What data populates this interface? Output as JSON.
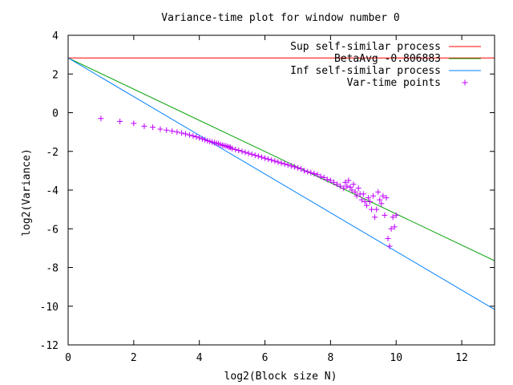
{
  "chart_data": {
    "type": "line",
    "title": "Variance-time plot for window number 0",
    "xlabel": "log2(Block size N)",
    "ylabel": "log2(Variance)",
    "xlim": [
      0,
      13
    ],
    "ylim": [
      -12,
      4
    ],
    "x_ticks": [
      0,
      2,
      4,
      6,
      8,
      10,
      12
    ],
    "y_ticks": [
      4,
      2,
      0,
      -2,
      -4,
      -6,
      -8,
      -10,
      -12
    ],
    "grid": false,
    "legend_position": "top-right",
    "series": [
      {
        "name": "Sup self-similar process",
        "kind": "line",
        "color": "#ff0000",
        "x": [
          0,
          13
        ],
        "y": [
          2.83,
          2.83
        ]
      },
      {
        "name": "BetaAvg -0.806883",
        "kind": "line",
        "color": "#00a000",
        "x": [
          0,
          13
        ],
        "y": [
          2.83,
          -7.65
        ]
      },
      {
        "name": "Inf self-similar process",
        "kind": "line",
        "color": "#0080ff",
        "x": [
          0,
          13
        ],
        "y": [
          2.83,
          -10.17
        ]
      },
      {
        "name": "Var-time points",
        "kind": "points",
        "marker": "+",
        "color": "#c000ff",
        "x": [
          1.0,
          1.58,
          2.0,
          2.32,
          2.58,
          2.81,
          3.0,
          3.17,
          3.32,
          3.46,
          3.58,
          3.7,
          3.81,
          3.91,
          4.0,
          4.09,
          4.17,
          4.25,
          4.32,
          4.39,
          4.46,
          4.52,
          4.58,
          4.64,
          4.7,
          4.75,
          4.81,
          4.86,
          4.91,
          4.95,
          5.0,
          5.1,
          5.2,
          5.3,
          5.4,
          5.5,
          5.6,
          5.7,
          5.8,
          5.9,
          6.0,
          6.1,
          6.2,
          6.3,
          6.4,
          6.5,
          6.6,
          6.7,
          6.8,
          6.9,
          7.0,
          7.1,
          7.2,
          7.3,
          7.4,
          7.5,
          7.6,
          7.7,
          7.8,
          7.9,
          8.0,
          8.1,
          8.2,
          8.3,
          8.4,
          8.45,
          8.5,
          8.55,
          8.6,
          8.65,
          8.7,
          8.75,
          8.8,
          8.85,
          8.9,
          8.95,
          9.0,
          9.05,
          9.1,
          9.15,
          9.2,
          9.25,
          9.3,
          9.35,
          9.4,
          9.45,
          9.5,
          9.55,
          9.6,
          9.65,
          9.7,
          9.75,
          9.8,
          9.85,
          9.9,
          9.95,
          10.0
        ],
        "y": [
          -0.3,
          -0.45,
          -0.55,
          -0.7,
          -0.75,
          -0.85,
          -0.9,
          -0.95,
          -1.0,
          -1.05,
          -1.1,
          -1.15,
          -1.2,
          -1.25,
          -1.3,
          -1.35,
          -1.4,
          -1.45,
          -1.48,
          -1.52,
          -1.55,
          -1.58,
          -1.6,
          -1.65,
          -1.68,
          -1.7,
          -1.72,
          -1.75,
          -1.78,
          -1.8,
          -1.85,
          -1.9,
          -1.95,
          -2.0,
          -2.05,
          -2.1,
          -2.15,
          -2.2,
          -2.25,
          -2.3,
          -2.35,
          -2.4,
          -2.45,
          -2.5,
          -2.55,
          -2.6,
          -2.65,
          -2.7,
          -2.75,
          -2.8,
          -2.85,
          -2.9,
          -3.0,
          -3.05,
          -3.1,
          -3.15,
          -3.2,
          -3.3,
          -3.35,
          -3.45,
          -3.5,
          -3.6,
          -3.7,
          -3.8,
          -3.9,
          -3.6,
          -3.8,
          -3.5,
          -3.85,
          -4.0,
          -3.7,
          -4.1,
          -4.3,
          -3.9,
          -4.2,
          -4.5,
          -4.2,
          -4.6,
          -4.8,
          -4.4,
          -4.6,
          -5.0,
          -4.3,
          -5.4,
          -5.0,
          -4.1,
          -4.5,
          -4.7,
          -4.3,
          -5.3,
          -4.4,
          -6.5,
          -6.9,
          -6.0,
          -5.4,
          -5.9,
          -5.3
        ]
      }
    ]
  }
}
